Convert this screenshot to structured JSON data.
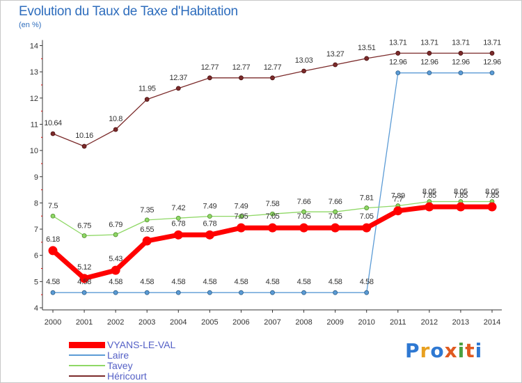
{
  "chart_data": {
    "type": "line",
    "title": "Evolution du Taux de Taxe d'Habitation",
    "subtitle": "(en %)",
    "xlabel": "",
    "ylabel": "",
    "ylim": [
      4,
      14
    ],
    "yticks": [
      4,
      5,
      6,
      7,
      8,
      9,
      10,
      11,
      12,
      13,
      14
    ],
    "grid": false,
    "legend_position": "bottom-left",
    "x": [
      "2000",
      "2001",
      "2002",
      "2003",
      "2004",
      "2005",
      "2006",
      "2007",
      "2008",
      "2009",
      "2010",
      "2011",
      "2012",
      "2013",
      "2014"
    ],
    "series": [
      {
        "name": "VYANS-LE-VAL",
        "color": "#ff0000",
        "values": [
          6.18,
          5.12,
          5.43,
          6.55,
          6.78,
          6.78,
          7.05,
          7.05,
          7.05,
          7.05,
          7.05,
          7.7,
          7.85,
          7.85,
          7.85
        ],
        "labels": [
          "6.18",
          "5.12",
          "5.43",
          "6.55",
          "6.78",
          "6.78",
          "7.05",
          "7.05",
          "7.05",
          "7.05",
          "7.05",
          "7.7",
          "7.85",
          "7.85",
          "7.85"
        ]
      },
      {
        "name": "Laire",
        "color": "#5b9bd5",
        "values": [
          4.58,
          4.58,
          4.58,
          4.58,
          4.58,
          4.58,
          4.58,
          4.58,
          4.58,
          4.58,
          4.58,
          12.96,
          12.96,
          12.96,
          12.96
        ],
        "labels": [
          "4.58",
          "4.58",
          "4.58",
          "4.58",
          "4.58",
          "4.58",
          "4.58",
          "4.58",
          "4.58",
          "4.58",
          "4.58",
          "12.96",
          "12.96",
          "12.96",
          "12.96"
        ]
      },
      {
        "name": "Tavey",
        "color": "#8fd866",
        "values": [
          7.5,
          6.75,
          6.79,
          7.35,
          7.42,
          7.49,
          7.49,
          7.58,
          7.66,
          7.66,
          7.81,
          7.89,
          8.05,
          8.05,
          8.05
        ],
        "labels": [
          "7.5",
          "6.75",
          "6.79",
          "7.35",
          "7.42",
          "7.49",
          "7.49",
          "7.58",
          "7.66",
          "7.66",
          "7.81",
          "7.89",
          "8.05",
          "8.05",
          "8.05"
        ]
      },
      {
        "name": "Héricourt",
        "color": "#7b2a2a",
        "values": [
          10.64,
          10.16,
          10.8,
          11.95,
          12.37,
          12.77,
          12.77,
          12.77,
          13.03,
          13.27,
          13.51,
          13.71,
          13.71,
          13.71,
          13.71
        ],
        "labels": [
          "10.64",
          "10.16",
          "10.8",
          "11.95",
          "12.37",
          "12.77",
          "12.77",
          "12.77",
          "13.03",
          "13.27",
          "13.51",
          "13.71",
          "13.71",
          "13.71",
          "13.71"
        ]
      }
    ]
  },
  "logo": {
    "text": "Proxiti",
    "letters": [
      "P",
      "r",
      "o",
      "x",
      "i",
      "t",
      "i"
    ],
    "colors": [
      "#2e78d2",
      "#e8a020",
      "#2e78d2",
      "#e05a20",
      "#4aa040",
      "#e05a20",
      "#2e78d2"
    ]
  }
}
